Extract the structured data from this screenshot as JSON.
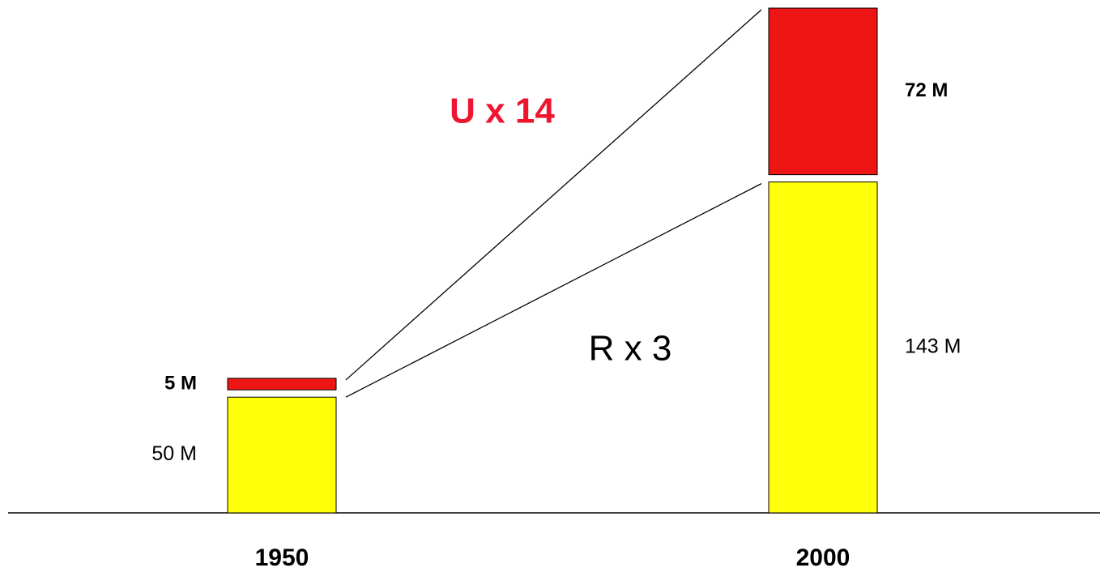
{
  "chart_data": {
    "type": "stacked_bar",
    "categories": [
      "1950",
      "2000"
    ],
    "series": [
      {
        "color": "#ffff0a",
        "values": [
          50,
          143
        ],
        "value_labels": [
          "50 M",
          "143 M"
        ]
      },
      {
        "color": "#ee1515",
        "values": [
          5,
          72
        ],
        "value_labels": [
          "5 M",
          "72 M"
        ]
      }
    ],
    "annotations": [
      "U x 14",
      "R x 3"
    ]
  }
}
